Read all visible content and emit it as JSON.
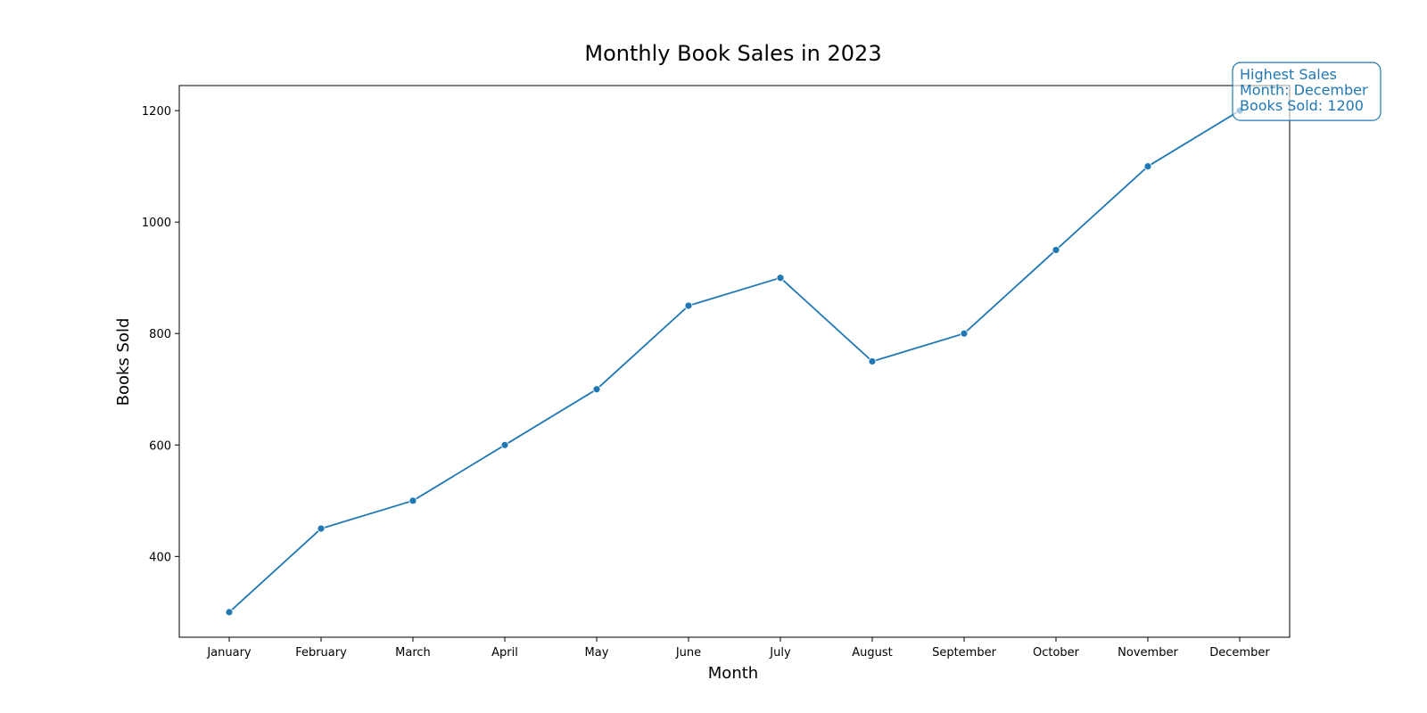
{
  "chart_data": {
    "type": "line",
    "title": "Monthly Book Sales in 2023",
    "xlabel": "Month",
    "ylabel": "Books Sold",
    "categories": [
      "January",
      "February",
      "March",
      "April",
      "May",
      "June",
      "July",
      "August",
      "September",
      "October",
      "November",
      "December"
    ],
    "series": [
      {
        "values": [
          300,
          450,
          500,
          600,
          700,
          850,
          900,
          750,
          800,
          950,
          1100,
          1200
        ]
      }
    ],
    "yticks": [
      400,
      600,
      800,
      1000,
      1200
    ],
    "ylim": [
      255,
      1245
    ],
    "grid": false,
    "annotation": {
      "lines": [
        "Highest Sales",
        "Month: December",
        "Books Sold: 1200"
      ],
      "category": "December",
      "value": 1200
    },
    "colors": {
      "series": "#1f77b4",
      "annotation": "#1f77b4",
      "axes": "#000000"
    }
  }
}
